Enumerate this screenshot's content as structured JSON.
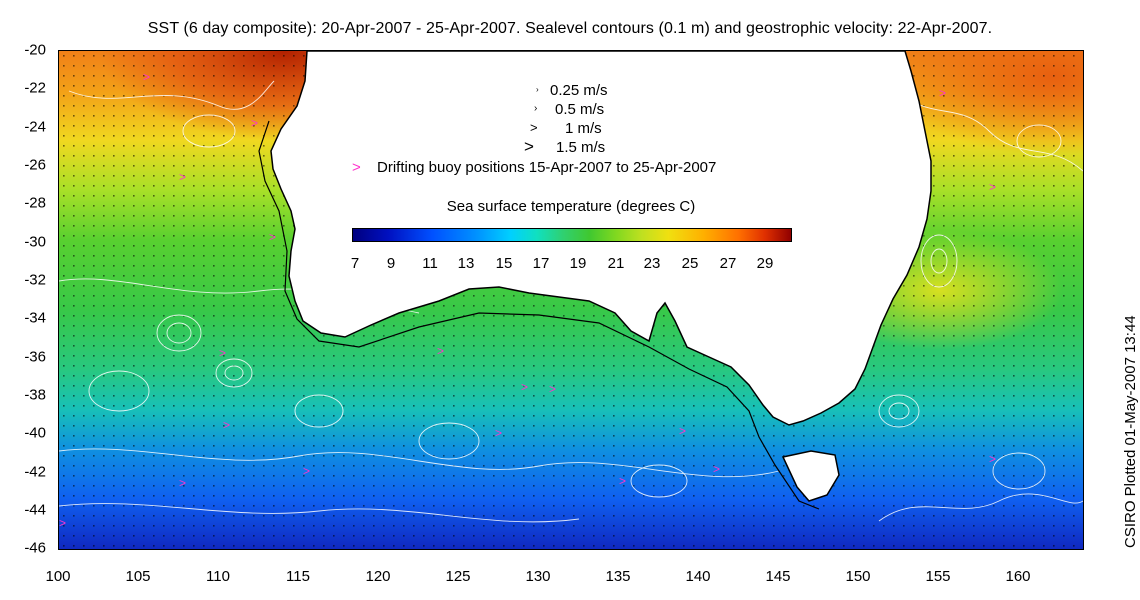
{
  "title": "SST (6 day composite): 20-Apr-2007 - 25-Apr-2007. Sealevel contours (0.1 m) and geostrophic velocity: 22-Apr-2007.",
  "credit": "CSIRO Plotted 01-May-2007 13:44",
  "map": {
    "lat_range": [
      -46,
      -20
    ],
    "lon_range": [
      100,
      164
    ],
    "y_ticks": [
      "-20",
      "-22",
      "-24",
      "-26",
      "-28",
      "-30",
      "-32",
      "-34",
      "-36",
      "-38",
      "-40",
      "-42",
      "-44",
      "-46"
    ],
    "x_ticks": [
      "100",
      "105",
      "110",
      "115",
      "120",
      "125",
      "130",
      "135",
      "140",
      "145",
      "150",
      "155",
      "160"
    ],
    "land_color": "#ffffff",
    "contour_color": "#ffffff",
    "buoy_color": "#ff33cc"
  },
  "legend": {
    "velocity_items": [
      {
        "arrow_icon": "small-arrow-icon",
        "label": "0.25 m/s"
      },
      {
        "arrow_icon": "small-arrow-icon",
        "label": "0.5 m/s"
      },
      {
        "arrow_icon": "medium-arrow-icon",
        "label": "1 m/s"
      },
      {
        "arrow_icon": "large-arrow-icon",
        "label": "1.5 m/s"
      }
    ],
    "buoy_marker": ">",
    "buoy_label": "Drifting buoy positions 15-Apr-2007 to 25-Apr-2007"
  },
  "colorbar": {
    "title": "Sea surface temperature (degrees C)",
    "range": [
      7,
      30
    ],
    "labels": [
      "7",
      "9",
      "11",
      "13",
      "15",
      "17",
      "19",
      "21",
      "23",
      "25",
      "27",
      "29"
    ]
  }
}
